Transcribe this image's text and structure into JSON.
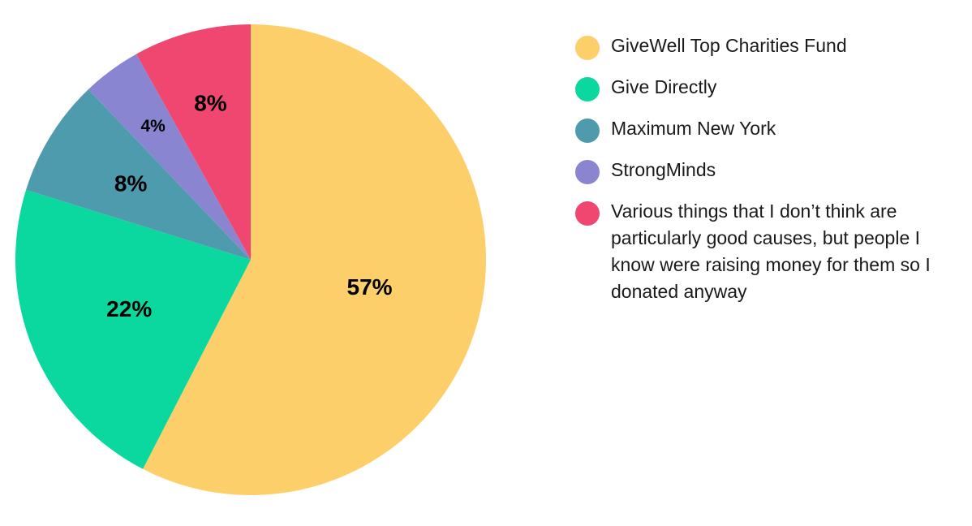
{
  "chart_data": {
    "type": "pie",
    "title": "",
    "legend_position": "right",
    "categories": [
      "GiveWell Top Charities Fund",
      "Give Directly",
      "Maximum New York",
      "StrongMinds",
      "Various things that I don’t think are particularly good causes, but people I know were raising money for them so I donated anyway"
    ],
    "values": [
      57,
      22,
      8,
      4,
      8
    ],
    "data_labels": [
      "57%",
      "22%",
      "8%",
      "4%",
      "8%"
    ],
    "colors": [
      "#FDCF6B",
      "#0AD89E",
      "#4E9BAE",
      "#8985D1",
      "#EF476F"
    ],
    "start": "12 o'clock",
    "direction": "clockwise"
  }
}
